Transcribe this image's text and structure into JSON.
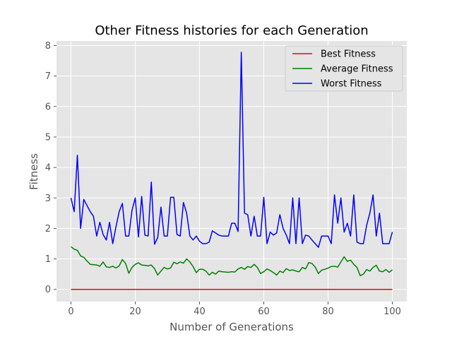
{
  "chart_data": {
    "type": "line",
    "title": "Other Fitness histories for each Generation",
    "xlabel": "Number of Generations",
    "ylabel": "Fitness",
    "xlim": [
      -4.5,
      104.5
    ],
    "ylim": [
      -0.4,
      8.15
    ],
    "xticks": [
      0,
      20,
      40,
      60,
      80,
      100
    ],
    "yticks": [
      0,
      1,
      2,
      3,
      4,
      5,
      6,
      7,
      8
    ],
    "grid": true,
    "legend_position": "top-right",
    "series": [
      {
        "name": "Best Fitness",
        "color": "#ff0000",
        "values": [
          0,
          0,
          0,
          0,
          0,
          0,
          0,
          0,
          0,
          0,
          0,
          0,
          0,
          0,
          0,
          0,
          0,
          0,
          0,
          0,
          0,
          0,
          0,
          0,
          0,
          0,
          0,
          0,
          0,
          0,
          0,
          0,
          0,
          0,
          0,
          0,
          0,
          0,
          0,
          0,
          0,
          0,
          0,
          0,
          0,
          0,
          0,
          0,
          0,
          0,
          0,
          0,
          0,
          0,
          0,
          0,
          0,
          0,
          0,
          0,
          0,
          0,
          0,
          0,
          0,
          0,
          0,
          0,
          0,
          0,
          0,
          0,
          0,
          0,
          0,
          0,
          0,
          0,
          0,
          0,
          0,
          0,
          0,
          0,
          0,
          0,
          0,
          0,
          0,
          0,
          0,
          0,
          0,
          0,
          0,
          0,
          0,
          0,
          0,
          0,
          0
        ]
      },
      {
        "name": "Average Fitness",
        "color": "#008000",
        "values": [
          1.4,
          1.32,
          1.28,
          1.1,
          1.05,
          0.93,
          0.82,
          0.81,
          0.8,
          0.76,
          0.9,
          0.74,
          0.72,
          0.76,
          0.7,
          0.77,
          0.98,
          0.85,
          0.53,
          0.72,
          0.82,
          0.87,
          0.8,
          0.79,
          0.77,
          0.8,
          0.68,
          0.47,
          0.6,
          0.72,
          0.67,
          0.7,
          0.89,
          0.84,
          0.9,
          0.86,
          1.0,
          0.9,
          0.75,
          0.55,
          0.66,
          0.66,
          0.6,
          0.47,
          0.56,
          0.5,
          0.6,
          0.58,
          0.57,
          0.56,
          0.58,
          0.57,
          0.67,
          0.72,
          0.66,
          0.75,
          0.72,
          0.82,
          0.72,
          0.52,
          0.58,
          0.67,
          0.62,
          0.55,
          0.47,
          0.6,
          0.55,
          0.68,
          0.62,
          0.64,
          0.6,
          0.58,
          0.72,
          0.67,
          0.88,
          0.85,
          0.73,
          0.52,
          0.63,
          0.66,
          0.7,
          0.75,
          0.76,
          0.73,
          0.9,
          1.07,
          0.92,
          0.96,
          0.82,
          0.72,
          0.45,
          0.5,
          0.65,
          0.6,
          0.72,
          0.79,
          0.6,
          0.58,
          0.65,
          0.56,
          0.64
        ]
      },
      {
        "name": "Worst Fitness",
        "color": "#0000ff",
        "values": [
          3.0,
          2.55,
          4.4,
          2.0,
          2.95,
          2.75,
          2.55,
          2.4,
          1.75,
          2.2,
          1.8,
          1.62,
          2.2,
          1.5,
          2.05,
          2.55,
          2.82,
          1.75,
          1.75,
          2.6,
          3.0,
          1.72,
          3.05,
          1.78,
          1.75,
          3.52,
          1.48,
          1.7,
          2.7,
          1.75,
          1.75,
          3.02,
          3.02,
          1.8,
          1.75,
          2.85,
          2.5,
          1.75,
          1.62,
          1.75,
          1.58,
          1.5,
          1.5,
          1.55,
          1.92,
          1.85,
          1.78,
          1.75,
          1.75,
          1.75,
          2.17,
          2.17,
          1.9,
          7.78,
          2.5,
          2.45,
          1.75,
          2.4,
          1.75,
          1.75,
          3.02,
          1.5,
          1.88,
          1.78,
          1.85,
          2.45,
          2.0,
          1.78,
          1.5,
          3.0,
          1.5,
          3.0,
          1.5,
          1.78,
          1.75,
          1.62,
          1.5,
          1.38,
          1.75,
          1.75,
          1.75,
          1.5,
          3.1,
          2.17,
          3.0,
          1.88,
          2.17,
          1.75,
          3.1,
          1.55,
          1.5,
          1.5,
          2.1,
          2.5,
          3.1,
          1.75,
          2.5,
          1.5,
          1.5,
          1.5,
          1.88
        ]
      }
    ]
  }
}
